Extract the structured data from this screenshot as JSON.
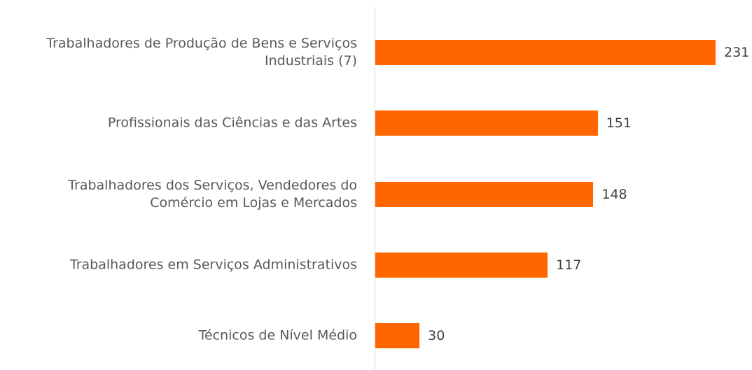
{
  "chart_data": {
    "type": "hbar",
    "categories": [
      "Trabalhadores de Produção de Bens e Serviços Industriais (7)",
      "Profissionais das Ciências e das Artes",
      "Trabalhadores dos Serviços, Vendedores do Comércio em Lojas e Mercados",
      "Trabalhadores em Serviços Administrativos",
      "Técnicos de Nível Médio"
    ],
    "values": [
      231,
      151,
      148,
      117,
      30
    ],
    "color": "#ff6600"
  }
}
